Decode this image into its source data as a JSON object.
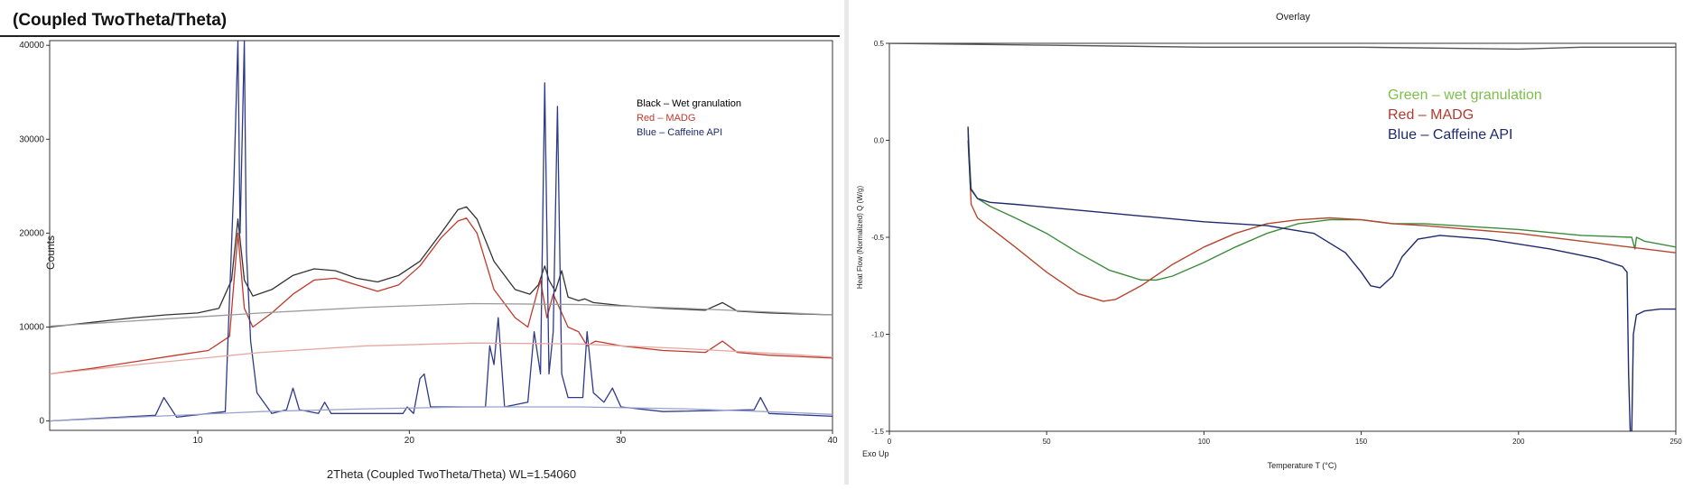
{
  "chart_data": [
    {
      "type": "line",
      "title": "(Coupled TwoTheta/Theta)",
      "xlabel": "2Theta (Coupled TwoTheta/Theta) WL=1.54060",
      "ylabel": "Counts",
      "xlim": [
        3,
        40
      ],
      "ylim": [
        -1000,
        40500
      ],
      "x_ticks": [
        10,
        20,
        30,
        40
      ],
      "y_ticks": [
        0,
        10000,
        20000,
        30000,
        40000
      ],
      "grid": false,
      "legend_placement": "top-right",
      "legend": [
        {
          "text": "Black – Wet granulation",
          "color": "#000000"
        },
        {
          "text": "Red – MADG",
          "color": "#c0392b"
        },
        {
          "text": "Blue – Caffeine API",
          "color": "#1f2a6b"
        }
      ],
      "series": [
        {
          "color": "#333333",
          "x": [
            3,
            5,
            7,
            8.5,
            10,
            11,
            11.6,
            11.9,
            12.2,
            12.6,
            13.5,
            14.5,
            15.5,
            16.5,
            17.5,
            18.5,
            19.5,
            20.5,
            21.5,
            22.3,
            22.7,
            23.2,
            24,
            25,
            25.7,
            26.1,
            26.4,
            26.6,
            26.9,
            27.2,
            27.5,
            28,
            28.3,
            28.7,
            30,
            32,
            34,
            34.8,
            35.5,
            37,
            40
          ],
          "y": [
            10000,
            10500,
            11000,
            11300,
            11500,
            12000,
            15000,
            21500,
            15000,
            13300,
            14000,
            15500,
            16200,
            16000,
            15200,
            14800,
            15500,
            17000,
            20000,
            22500,
            22800,
            21500,
            17000,
            14000,
            13500,
            14500,
            16500,
            15000,
            13800,
            16000,
            13200,
            12800,
            13000,
            12600,
            12300,
            12000,
            11800,
            12600,
            11700,
            11500,
            11300
          ]
        },
        {
          "color": "#c0392b",
          "x": [
            3,
            5,
            7,
            9,
            10.5,
            11.5,
            11.9,
            12.2,
            12.6,
            13.5,
            14.5,
            15.5,
            16.5,
            17.5,
            18.5,
            19.5,
            20.5,
            21.5,
            22.3,
            22.7,
            23.2,
            24,
            25,
            25.6,
            25.9,
            26.2,
            26.5,
            26.8,
            27.2,
            27.5,
            28,
            28.4,
            28.8,
            30,
            32,
            34,
            34.8,
            35.5,
            37,
            40
          ],
          "y": [
            5000,
            5600,
            6300,
            7000,
            7500,
            9000,
            20000,
            12000,
            10000,
            11500,
            13500,
            15000,
            15200,
            14500,
            13800,
            14500,
            16500,
            19500,
            21300,
            21600,
            20000,
            14000,
            11000,
            10000,
            12500,
            15000,
            11000,
            13500,
            11500,
            10000,
            9500,
            8000,
            8500,
            8000,
            7500,
            7300,
            8500,
            7300,
            7000,
            6700
          ]
        },
        {
          "color": "#2e3a87",
          "x": [
            3,
            8,
            8.4,
            9,
            11.3,
            11.7,
            11.9,
            12.0,
            12.2,
            12.3,
            12.5,
            12.8,
            13.5,
            14.2,
            14.5,
            14.8,
            15.7,
            16,
            16.3,
            19.7,
            19.9,
            20.2,
            20.5,
            20.7,
            21,
            23.6,
            23.8,
            24.0,
            24.2,
            24.5,
            25.6,
            25.9,
            26.2,
            26.4,
            26.6,
            26.8,
            27.0,
            27.2,
            27.5,
            28.2,
            28.4,
            28.7,
            29.2,
            29.6,
            30,
            32,
            36.3,
            36.6,
            37,
            40
          ],
          "y": [
            0,
            600,
            2500,
            400,
            1000,
            25000,
            40500,
            20000,
            40500,
            18000,
            8500,
            3000,
            800,
            1200,
            3500,
            1200,
            800,
            2000,
            800,
            800,
            1500,
            800,
            4500,
            5000,
            1500,
            1500,
            8000,
            6000,
            11000,
            1500,
            2000,
            9500,
            5000,
            36000,
            5000,
            9500,
            33500,
            5000,
            2500,
            2500,
            9500,
            3000,
            2000,
            3500,
            1500,
            1000,
            1200,
            2500,
            800,
            500
          ]
        },
        {
          "color": "#9a9a9a",
          "x": [
            3,
            8,
            13,
            18,
            23,
            28,
            33,
            38,
            40
          ],
          "y": [
            10100,
            10800,
            11500,
            12100,
            12500,
            12400,
            12000,
            11500,
            11300
          ]
        },
        {
          "color": "#e6a8a0",
          "x": [
            3,
            8,
            13,
            18,
            23,
            28,
            33,
            38,
            40
          ],
          "y": [
            5000,
            6200,
            7300,
            8000,
            8300,
            8200,
            7700,
            7100,
            6800
          ]
        },
        {
          "color": "#9aa2cc",
          "x": [
            3,
            8,
            13,
            18,
            23,
            28,
            33,
            38,
            40
          ],
          "y": [
            0,
            500,
            1000,
            1300,
            1500,
            1500,
            1300,
            900,
            700
          ]
        }
      ]
    },
    {
      "type": "line",
      "title": "Overlay",
      "xlabel": "Temperature T (°C)",
      "ylabel": "Heat Flow (Normalized) Q (W/g)",
      "x_ticks": [
        0,
        50,
        100,
        150,
        200,
        250
      ],
      "y_ticks": [
        0.5,
        0.0,
        -0.5,
        -1.0,
        -1.5
      ],
      "xlim": [
        0,
        250
      ],
      "ylim": [
        -1.5,
        0.5
      ],
      "corner_label": "Exo Up",
      "grid": false,
      "legend_placement": "top-right",
      "legend": [
        {
          "text": "Green – wet granulation",
          "color": "#7cbf4a"
        },
        {
          "text": "Red – MADG",
          "color": "#b23a2f"
        },
        {
          "text": "Blue – Caffeine API",
          "color": "#1f2a6b"
        }
      ],
      "series": [
        {
          "color": "#3d8b3d",
          "x": [
            25,
            25.5,
            26,
            28,
            32,
            40,
            50,
            60,
            70,
            80,
            85,
            90,
            100,
            110,
            120,
            130,
            140,
            150,
            160,
            170,
            200,
            220,
            236,
            237,
            237.5,
            240,
            250
          ],
          "y": [
            0.06,
            -0.1,
            -0.25,
            -0.3,
            -0.34,
            -0.4,
            -0.48,
            -0.58,
            -0.67,
            -0.72,
            -0.72,
            -0.7,
            -0.63,
            -0.55,
            -0.48,
            -0.43,
            -0.41,
            -0.41,
            -0.43,
            -0.43,
            -0.46,
            -0.49,
            -0.5,
            -0.56,
            -0.5,
            -0.52,
            -0.55
          ]
        },
        {
          "color": "#b5462e",
          "x": [
            25,
            25.5,
            26,
            28,
            32,
            40,
            50,
            60,
            68,
            72,
            80,
            90,
            100,
            110,
            120,
            130,
            140,
            150,
            160,
            170,
            200,
            220,
            250
          ],
          "y": [
            0.0,
            -0.15,
            -0.33,
            -0.4,
            -0.45,
            -0.55,
            -0.68,
            -0.79,
            -0.83,
            -0.82,
            -0.75,
            -0.64,
            -0.55,
            -0.48,
            -0.43,
            -0.41,
            -0.4,
            -0.41,
            -0.43,
            -0.44,
            -0.48,
            -0.52,
            -0.58
          ]
        },
        {
          "color": "#1f2a6b",
          "x": [
            25,
            25.3,
            25.8,
            28,
            32,
            40,
            60,
            80,
            100,
            120,
            135,
            145,
            150,
            153,
            156,
            160,
            163,
            168,
            175,
            190,
            210,
            225,
            233,
            234.5,
            235,
            235.5,
            236,
            236.5,
            237.5,
            240,
            245,
            250
          ],
          "y": [
            0.07,
            -0.08,
            -0.25,
            -0.3,
            -0.32,
            -0.33,
            -0.36,
            -0.39,
            -0.42,
            -0.44,
            -0.48,
            -0.58,
            -0.68,
            -0.75,
            -0.76,
            -0.7,
            -0.6,
            -0.51,
            -0.49,
            -0.51,
            -0.56,
            -0.61,
            -0.65,
            -0.68,
            -1.2,
            -1.5,
            -1.5,
            -1.0,
            -0.9,
            -0.88,
            -0.87,
            -0.87
          ]
        },
        {
          "color": "#555555",
          "x": [
            0,
            50,
            100,
            150,
            200,
            220,
            250
          ],
          "y": [
            0.5,
            0.49,
            0.48,
            0.48,
            0.47,
            0.48,
            0.48
          ]
        }
      ]
    }
  ]
}
